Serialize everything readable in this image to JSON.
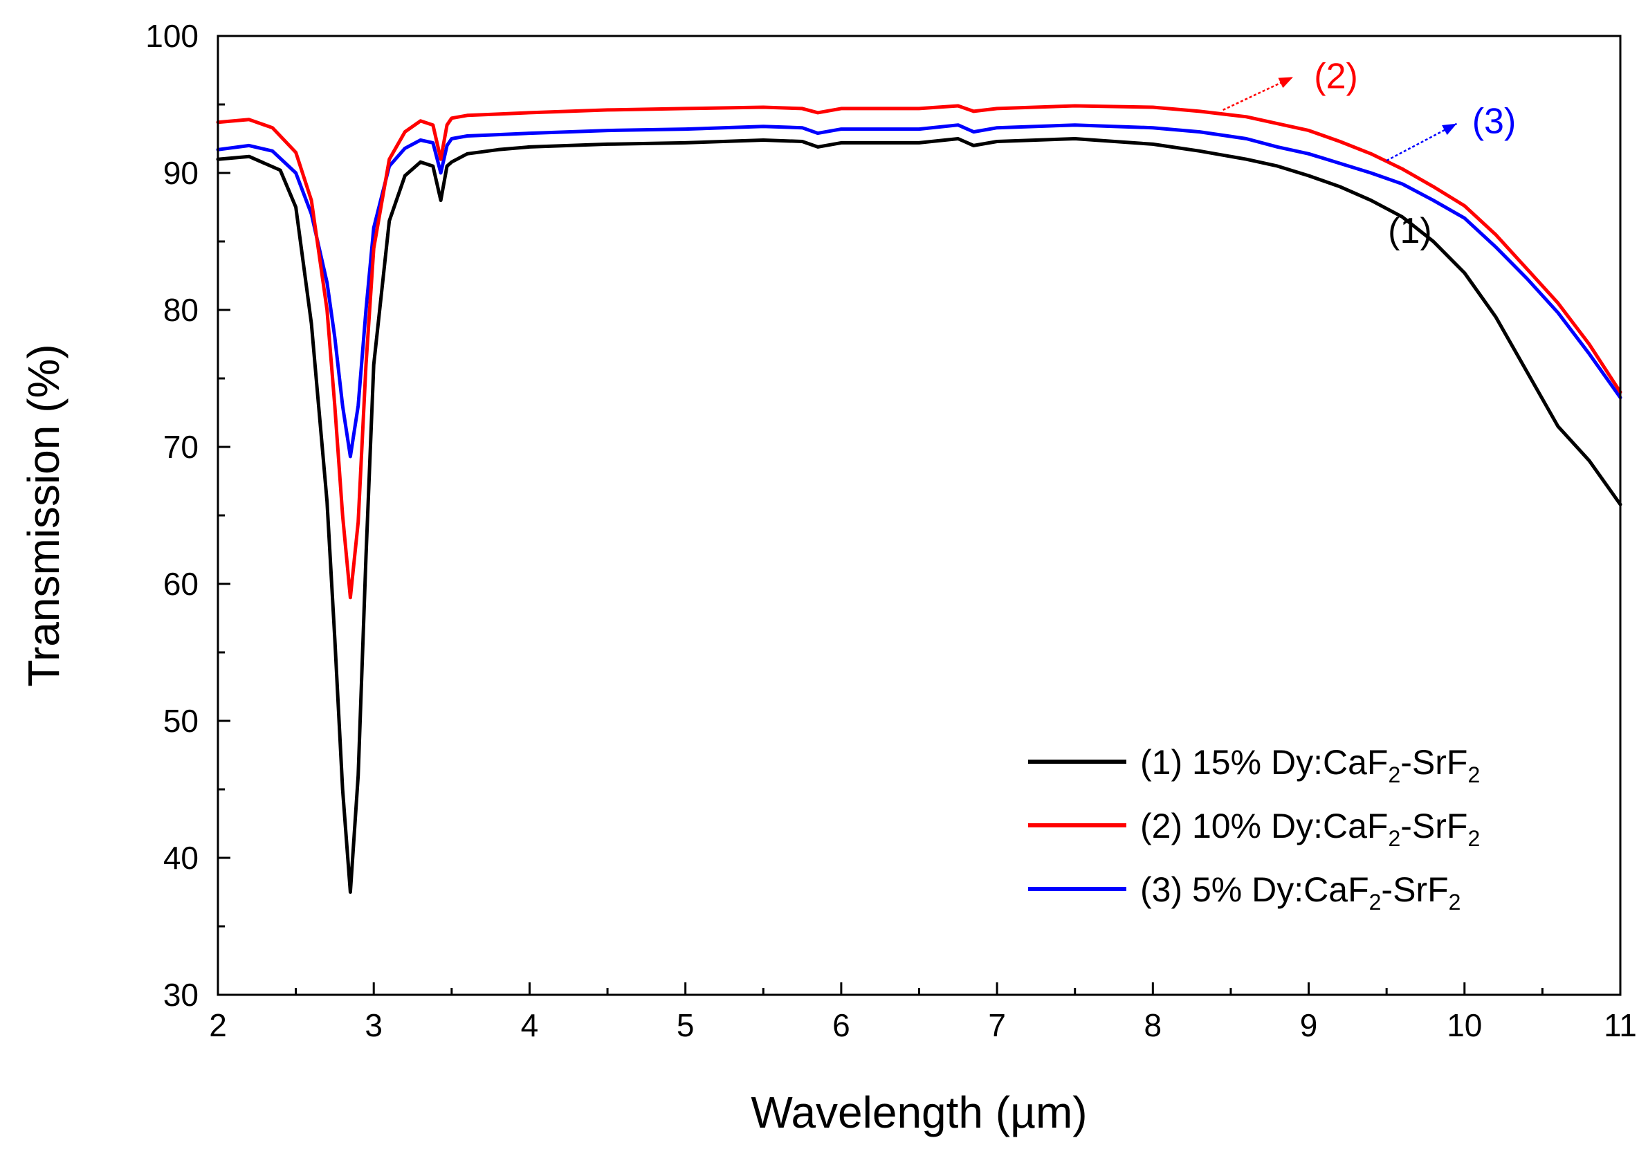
{
  "chart_data": {
    "type": "line",
    "title": "",
    "xlabel": "Wavelength (µm)",
    "ylabel": "Transmission (%)",
    "xlim": [
      2,
      11
    ],
    "ylim": [
      30,
      100
    ],
    "xticks": [
      2,
      3,
      4,
      5,
      6,
      7,
      8,
      9,
      10,
      11
    ],
    "yticks": [
      30,
      40,
      50,
      60,
      70,
      80,
      90,
      100
    ],
    "grid": false,
    "legend_position": "bottom-right",
    "series": [
      {
        "name": "(1) 15% Dy:CaF2-SrF2",
        "legend_parts": [
          "(1) 15% Dy:CaF",
          "2",
          "-SrF",
          "2"
        ],
        "color": "#000000",
        "x": [
          2.0,
          2.2,
          2.4,
          2.5,
          2.6,
          2.7,
          2.75,
          2.8,
          2.85,
          2.9,
          2.95,
          3.0,
          3.1,
          3.2,
          3.3,
          3.38,
          3.43,
          3.47,
          3.5,
          3.6,
          3.8,
          4.0,
          4.5,
          5.0,
          5.5,
          5.75,
          5.85,
          6.0,
          6.5,
          6.75,
          6.85,
          7.0,
          7.5,
          8.0,
          8.3,
          8.6,
          8.8,
          9.0,
          9.2,
          9.4,
          9.6,
          9.8,
          10.0,
          10.2,
          10.4,
          10.6,
          10.8,
          11.0
        ],
        "y": [
          91.0,
          91.2,
          90.2,
          87.5,
          79.0,
          66.0,
          56.0,
          45.0,
          37.5,
          46.0,
          62.0,
          76.0,
          86.5,
          89.8,
          90.8,
          90.5,
          88.0,
          90.5,
          90.8,
          91.4,
          91.7,
          91.9,
          92.1,
          92.2,
          92.4,
          92.3,
          91.9,
          92.2,
          92.2,
          92.5,
          92.0,
          92.3,
          92.5,
          92.1,
          91.6,
          91.0,
          90.5,
          89.8,
          89.0,
          88.0,
          86.8,
          85.0,
          82.7,
          79.5,
          75.5,
          71.5,
          69.0,
          65.8
        ]
      },
      {
        "name": "(2) 10% Dy:CaF2-SrF2",
        "legend_parts": [
          "(2) 10% Dy:CaF",
          "2",
          "-SrF",
          "2"
        ],
        "color": "#ff0000",
        "x": [
          2.0,
          2.2,
          2.35,
          2.5,
          2.6,
          2.7,
          2.75,
          2.8,
          2.85,
          2.9,
          2.95,
          3.0,
          3.1,
          3.2,
          3.3,
          3.38,
          3.43,
          3.47,
          3.5,
          3.6,
          3.8,
          4.0,
          4.5,
          5.0,
          5.5,
          5.75,
          5.85,
          6.0,
          6.5,
          6.75,
          6.85,
          7.0,
          7.5,
          8.0,
          8.3,
          8.6,
          8.8,
          9.0,
          9.2,
          9.4,
          9.6,
          9.8,
          10.0,
          10.2,
          10.4,
          10.6,
          10.8,
          11.0
        ],
        "y": [
          93.7,
          93.9,
          93.3,
          91.5,
          88.0,
          80.0,
          73.0,
          65.0,
          59.0,
          64.5,
          76.0,
          84.5,
          91.0,
          93.0,
          93.8,
          93.5,
          91.0,
          93.5,
          94.0,
          94.2,
          94.3,
          94.4,
          94.6,
          94.7,
          94.8,
          94.7,
          94.4,
          94.7,
          94.7,
          94.9,
          94.5,
          94.7,
          94.9,
          94.8,
          94.5,
          94.1,
          93.6,
          93.1,
          92.3,
          91.4,
          90.3,
          89.0,
          87.6,
          85.5,
          83.0,
          80.5,
          77.5,
          74.0
        ]
      },
      {
        "name": "(3) 5% Dy:CaF2-SrF2",
        "legend_parts": [
          "(3) 5% Dy:CaF",
          "2",
          "-SrF",
          "2"
        ],
        "color": "#0000ff",
        "x": [
          2.0,
          2.2,
          2.35,
          2.5,
          2.6,
          2.7,
          2.75,
          2.8,
          2.85,
          2.9,
          2.95,
          3.0,
          3.1,
          3.2,
          3.3,
          3.38,
          3.43,
          3.47,
          3.5,
          3.6,
          3.8,
          4.0,
          4.5,
          5.0,
          5.5,
          5.75,
          5.85,
          6.0,
          6.5,
          6.75,
          6.85,
          7.0,
          7.5,
          8.0,
          8.3,
          8.6,
          8.8,
          9.0,
          9.2,
          9.4,
          9.6,
          9.8,
          10.0,
          10.2,
          10.4,
          10.6,
          10.8,
          11.0
        ],
        "y": [
          91.7,
          92.0,
          91.6,
          90.0,
          87.0,
          82.0,
          78.0,
          73.0,
          69.3,
          73.0,
          80.0,
          86.0,
          90.5,
          91.8,
          92.4,
          92.2,
          90.0,
          92.0,
          92.5,
          92.7,
          92.8,
          92.9,
          93.1,
          93.2,
          93.4,
          93.3,
          92.9,
          93.2,
          93.2,
          93.5,
          93.0,
          93.3,
          93.5,
          93.3,
          93.0,
          92.5,
          91.9,
          91.4,
          90.7,
          90.0,
          89.2,
          88.0,
          86.7,
          84.6,
          82.3,
          79.8,
          76.8,
          73.6
        ]
      }
    ],
    "annotations": [
      {
        "text": "(1)",
        "color": "#000000"
      },
      {
        "text": "(2)",
        "color": "#ff0000"
      },
      {
        "text": "(3)",
        "color": "#0000ff"
      }
    ]
  }
}
